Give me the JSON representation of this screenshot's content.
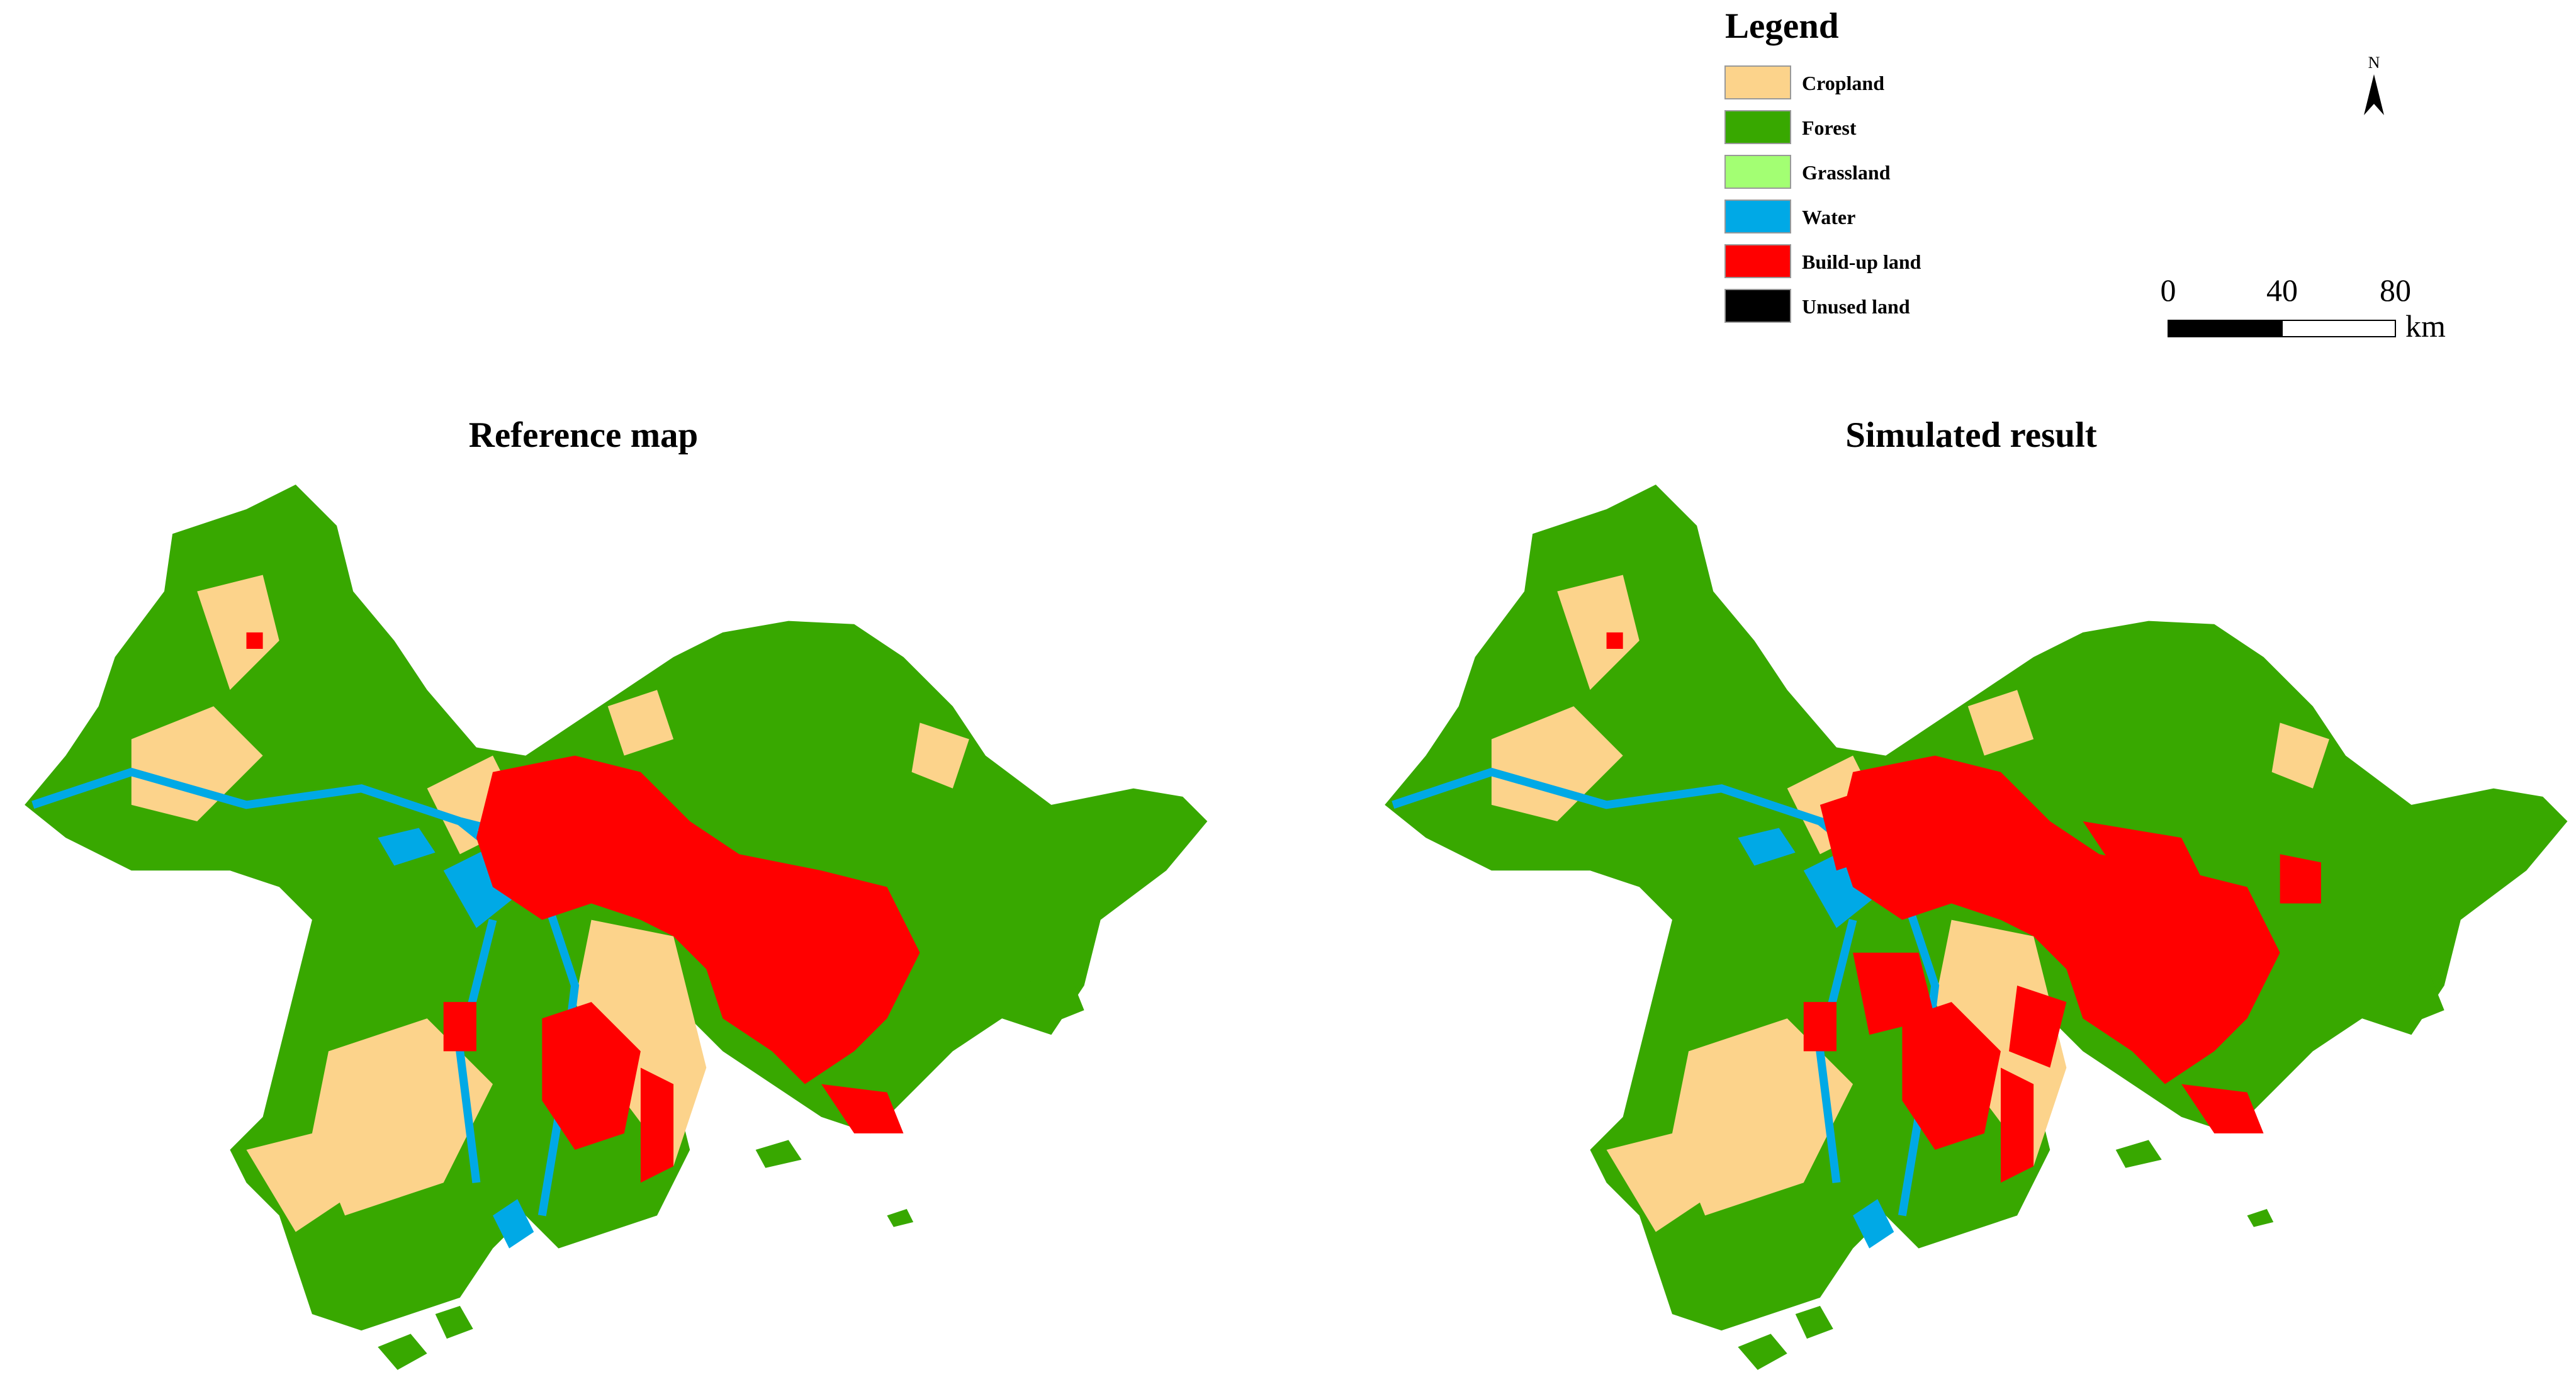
{
  "legend": {
    "title": "Legend",
    "items": [
      {
        "label": "Cropland",
        "color": "#fcd38b"
      },
      {
        "label": "Forest",
        "color": "#38a800"
      },
      {
        "label": "Grassland",
        "color": "#a3ff73"
      },
      {
        "label": "Water",
        "color": "#00a9e6"
      },
      {
        "label": "Build-up land",
        "color": "#ff0000"
      },
      {
        "label": "Unused land",
        "color": "#000000"
      }
    ]
  },
  "north_arrow": {
    "label": "N"
  },
  "scale_bar": {
    "ticks": [
      0,
      40,
      80
    ],
    "unit": "km"
  },
  "maps": [
    {
      "title": "Reference map"
    },
    {
      "title": "Simulated result"
    }
  ]
}
